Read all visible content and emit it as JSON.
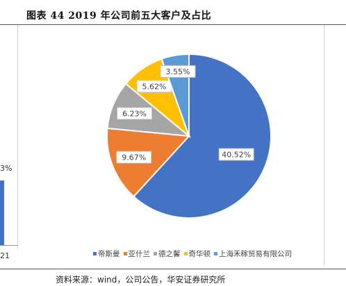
{
  "figure": {
    "title": "图表 44 2019 年公司前五大客户及占比",
    "source": "资料来源：wind，公司公告，华安证券研究所"
  },
  "left_fragment": {
    "top_label": "3%",
    "bottom_label": "21"
  },
  "chart_data": {
    "type": "pie",
    "title": "",
    "legend_position": "bottom",
    "slices": [
      {
        "name": "帝斯曼",
        "value": 40.52,
        "label": "40.52%",
        "color": "#4472C4"
      },
      {
        "name": "亚什兰",
        "value": 9.67,
        "label": "9.67%",
        "color": "#ED7D31"
      },
      {
        "name": "德之馨",
        "value": 6.23,
        "label": "6.23%",
        "color": "#A5A5A5"
      },
      {
        "name": "奇华顿",
        "value": 5.62,
        "label": "5.62%",
        "color": "#FFC000"
      },
      {
        "name": "上海禾稼贸易有限公司",
        "value": 3.55,
        "label": "3.55%",
        "color": "#5B9BD5"
      }
    ]
  }
}
